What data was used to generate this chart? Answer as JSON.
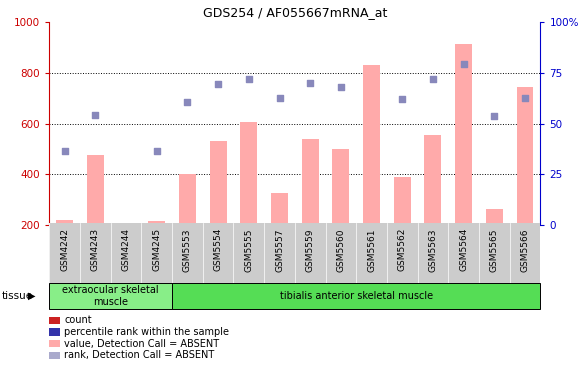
{
  "title": "GDS254 / AF055667mRNA_at",
  "samples": [
    "GSM4242",
    "GSM4243",
    "GSM4244",
    "GSM4245",
    "GSM5553",
    "GSM5554",
    "GSM5555",
    "GSM5557",
    "GSM5559",
    "GSM5560",
    "GSM5561",
    "GSM5562",
    "GSM5563",
    "GSM5564",
    "GSM5565",
    "GSM5566"
  ],
  "bar_values": [
    220,
    475,
    null,
    215,
    400,
    530,
    605,
    325,
    540,
    500,
    830,
    390,
    555,
    915,
    265,
    745
  ],
  "dot_values": [
    490,
    635,
    null,
    490,
    685,
    755,
    775,
    700,
    760,
    745,
    null,
    695,
    775,
    835,
    630,
    700
  ],
  "bar_color": "#ffaaaa",
  "dot_color": "#8888bb",
  "ylim_left": [
    200,
    1000
  ],
  "ylim_right": [
    0,
    100
  ],
  "yticks_left": [
    200,
    400,
    600,
    800,
    1000
  ],
  "yticks_right": [
    0,
    25,
    50,
    75,
    100
  ],
  "tissue_groups": [
    {
      "label": "extraocular skeletal\nmuscle",
      "start": 0,
      "end": 4,
      "color": "#88ee88"
    },
    {
      "label": "tibialis anterior skeletal muscle",
      "start": 4,
      "end": 16,
      "color": "#55dd55"
    }
  ],
  "tissue_label": "tissue",
  "background_color": "#ffffff",
  "plot_bg_color": "#ffffff",
  "xticklabel_bg": "#cccccc",
  "grid_color": "#000000",
  "left_axis_color": "#cc0000",
  "right_axis_color": "#0000cc",
  "legend_items": [
    {
      "color": "#cc2222",
      "label": "count"
    },
    {
      "color": "#3333aa",
      "label": "percentile rank within the sample"
    },
    {
      "color": "#ffaaaa",
      "label": "value, Detection Call = ABSENT"
    },
    {
      "color": "#aaaacc",
      "label": "rank, Detection Call = ABSENT"
    }
  ]
}
